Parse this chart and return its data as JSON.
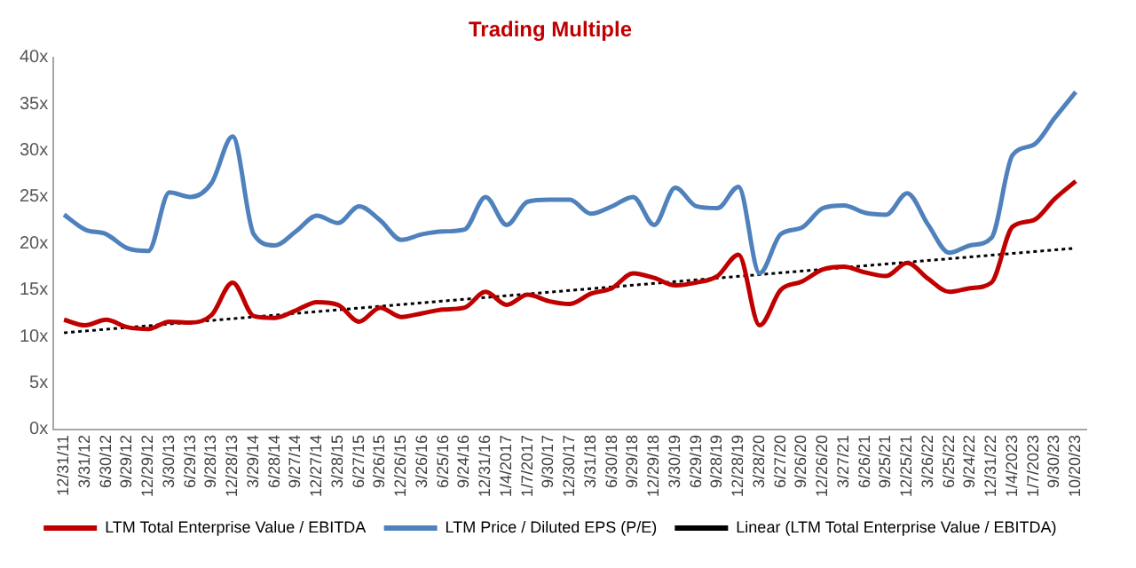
{
  "chart_data": {
    "type": "line",
    "title": "Trading Multiple",
    "categories": [
      "12/31/11",
      "3/31/12",
      "6/30/12",
      "9/29/12",
      "12/29/12",
      "3/30/13",
      "6/29/13",
      "9/28/13",
      "12/28/13",
      "3/29/14",
      "6/28/14",
      "9/27/14",
      "12/27/14",
      "3/28/15",
      "6/27/15",
      "9/26/15",
      "12/26/15",
      "3/26/16",
      "6/25/16",
      "9/24/16",
      "12/31/16",
      "1/4/2017",
      "1/7/2017",
      "9/30/17",
      "12/30/17",
      "3/31/18",
      "6/30/18",
      "9/29/18",
      "12/29/18",
      "3/30/19",
      "6/29/19",
      "9/28/19",
      "12/28/19",
      "3/28/20",
      "6/27/20",
      "9/26/20",
      "12/26/20",
      "3/27/21",
      "6/26/21",
      "9/25/21",
      "12/25/21",
      "3/26/22",
      "6/25/22",
      "9/24/22",
      "12/31/22",
      "1/4/2023",
      "1/7/2023",
      "9/30/23",
      "10/20/23"
    ],
    "series": [
      {
        "name": "LTM Total Enterprise Value / EBITDA",
        "color": "#c00000",
        "values": [
          11.8,
          11.2,
          11.8,
          11.0,
          10.8,
          11.6,
          11.5,
          12.3,
          15.8,
          12.2,
          12.0,
          12.8,
          13.7,
          13.4,
          11.6,
          13.1,
          12.1,
          12.5,
          12.9,
          13.1,
          14.8,
          13.4,
          14.5,
          13.8,
          13.5,
          14.6,
          15.2,
          16.8,
          16.3,
          15.5,
          15.8,
          16.5,
          18.8,
          11.2,
          15.0,
          15.9,
          17.2,
          17.5,
          16.9,
          16.5,
          17.9,
          16.2,
          14.8,
          15.2,
          15.8,
          21.8,
          22.5,
          24.8,
          26.7
        ]
      },
      {
        "name": "LTM Price / Diluted EPS (P/E)",
        "color": "#4f81bd",
        "values": [
          23.1,
          21.5,
          21.0,
          19.5,
          19.2,
          25.5,
          25.0,
          26.5,
          31.5,
          21.0,
          19.8,
          21.3,
          23.0,
          22.2,
          24.0,
          22.5,
          20.4,
          21.0,
          21.3,
          21.5,
          25.0,
          22.0,
          24.5,
          24.7,
          24.7,
          23.2,
          24.0,
          25.0,
          22.0,
          26.0,
          24.0,
          23.8,
          26.1,
          16.8,
          21.0,
          21.7,
          23.8,
          24.1,
          23.3,
          23.1,
          25.4,
          22.0,
          19.0,
          19.8,
          20.6,
          29.5,
          30.6,
          33.5,
          36.3
        ]
      },
      {
        "name": "Linear (LTM Total Enterprise Value / EBITDA)",
        "color": "#000000",
        "line_style": "dotted",
        "x": [
          "12/31/11",
          "10/20/23"
        ],
        "values": [
          10.4,
          19.5
        ]
      }
    ],
    "ylim": [
      0,
      40
    ],
    "yticks": [
      {
        "value": 0,
        "label": "0x"
      },
      {
        "value": 5,
        "label": "5x"
      },
      {
        "value": 10,
        "label": "10x"
      },
      {
        "value": 15,
        "label": "15x"
      },
      {
        "value": 20,
        "label": "20x"
      },
      {
        "value": 25,
        "label": "25x"
      },
      {
        "value": 30,
        "label": "30x"
      },
      {
        "value": 35,
        "label": "35x"
      },
      {
        "value": 40,
        "label": "40x"
      }
    ],
    "grid": false,
    "legend": "bottom",
    "marker": "none"
  }
}
